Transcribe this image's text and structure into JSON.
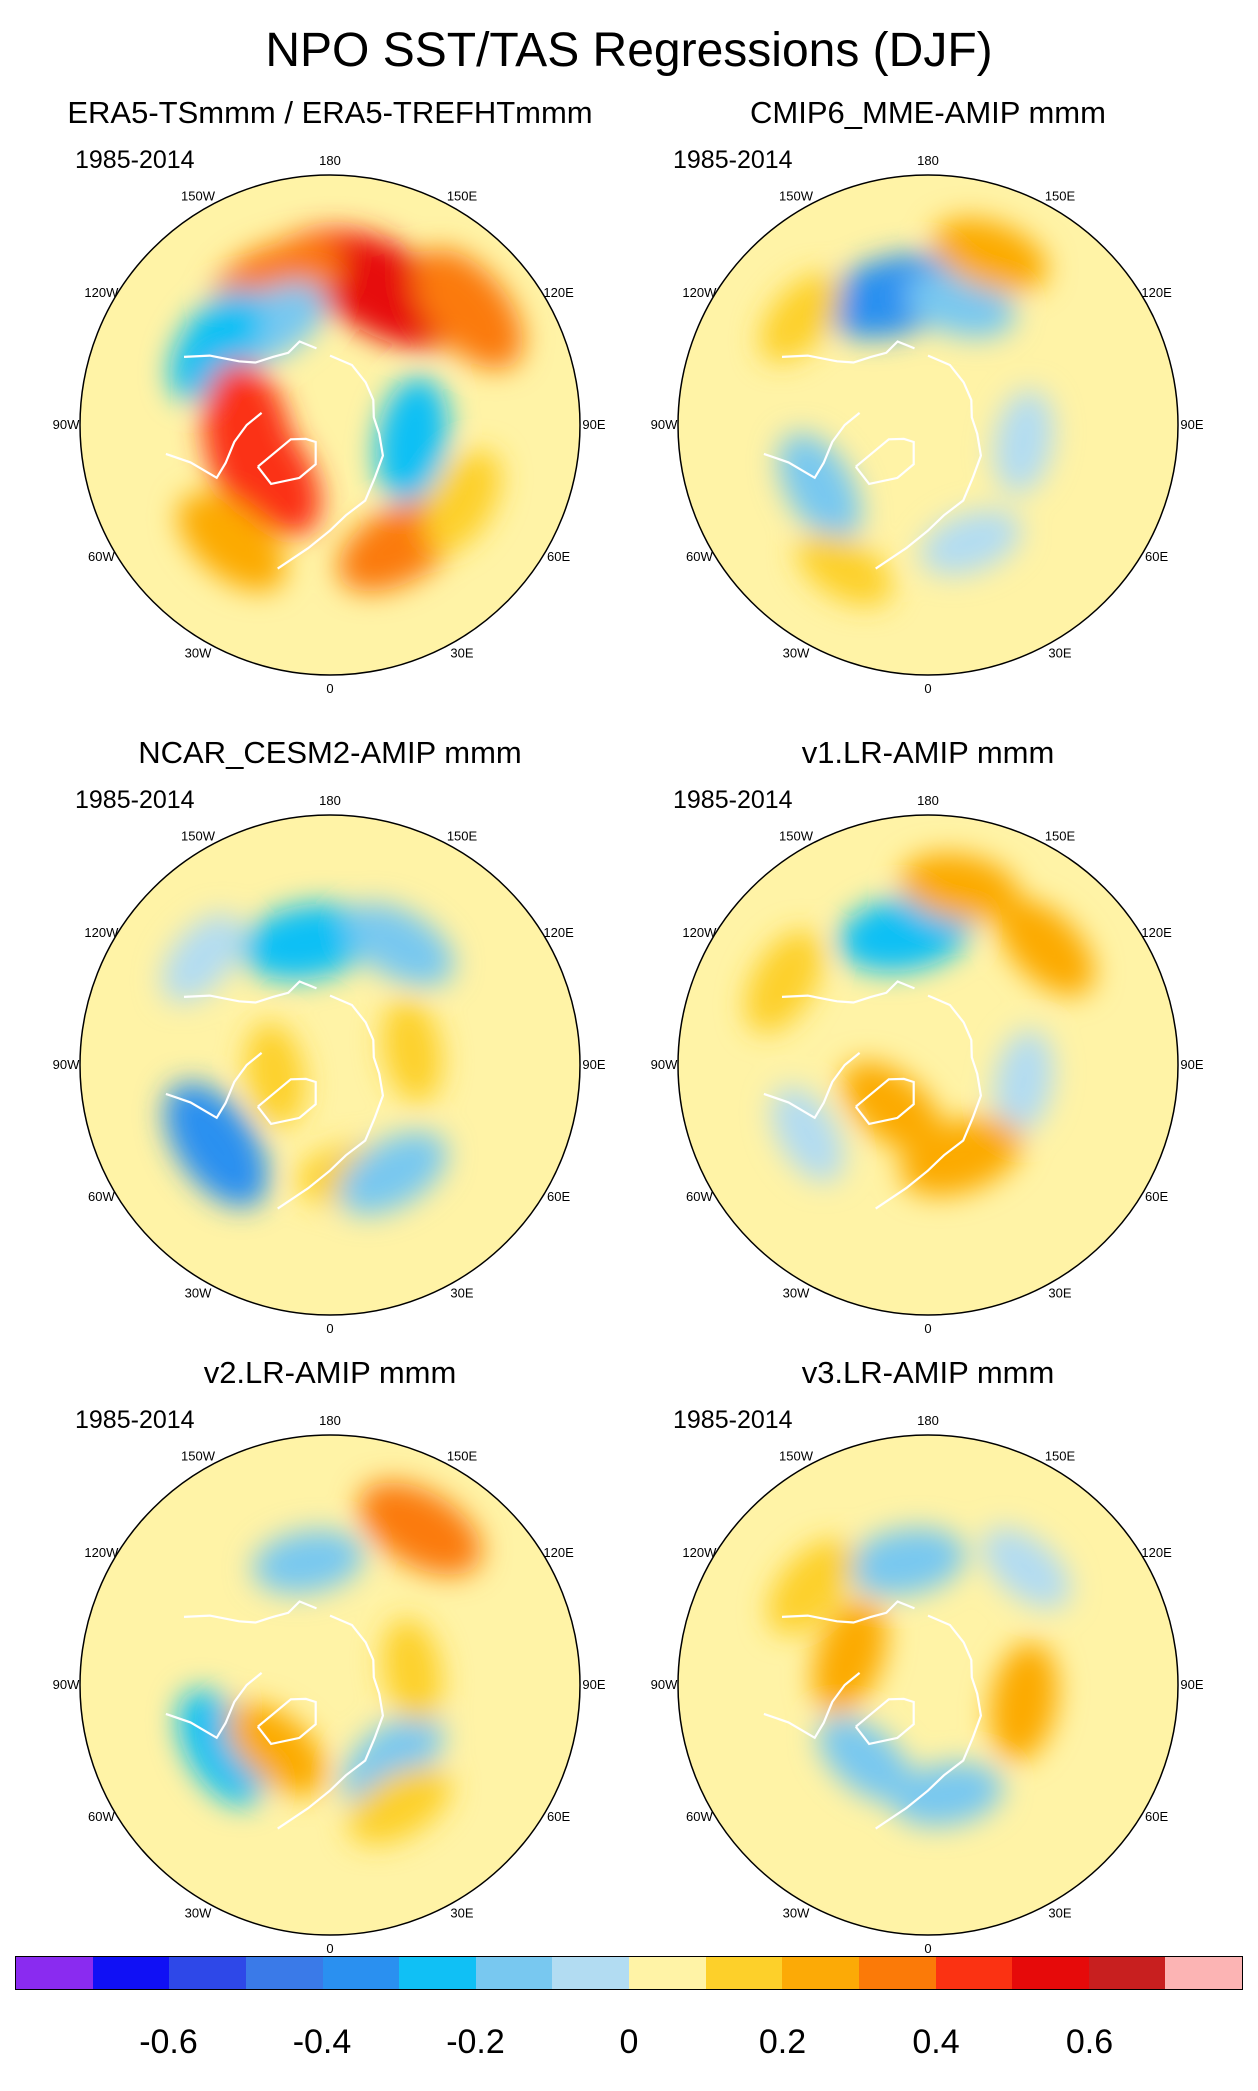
{
  "title": "NPO SST/TAS Regressions (DJF)",
  "chart_data": {
    "type": "heatmap",
    "projection": "north-polar-stereographic",
    "longitude_labels": [
      "180",
      "150E",
      "120E",
      "90E",
      "60E",
      "30E",
      "0",
      "30W",
      "60W",
      "90W",
      "120W",
      "150W"
    ],
    "colorbar": {
      "levels": [
        -0.7,
        -0.6,
        -0.5,
        -0.4,
        -0.3,
        -0.2,
        -0.1,
        0,
        0.1,
        0.2,
        0.3,
        0.4,
        0.5,
        0.6,
        0.7
      ],
      "colors": [
        "#8a2bf0",
        "#1010f5",
        "#2e48e8",
        "#3a7ae8",
        "#2a90f0",
        "#10c0f5",
        "#78c8f0",
        "#b2dcf2",
        "#fff3a6",
        "#fdd02a",
        "#fcaa06",
        "#fb7a08",
        "#fb3212",
        "#e60a0a",
        "#c81f1f",
        "#fcb4b4"
      ],
      "tick_labels": [
        "-0.6",
        "-0.4",
        "-0.2",
        "0",
        "0.2",
        "0.4",
        "0.6"
      ]
    },
    "panels": [
      {
        "title": "ERA5-TSmmm / ERA5-TREFHTmmm",
        "period": "1985-2014",
        "blobs": [
          {
            "lon": 175,
            "lat": 35,
            "value": 0.45
          },
          {
            "lon": 155,
            "lat": 38,
            "value": 0.5
          },
          {
            "lon": -160,
            "lat": 35,
            "value": 0.3
          },
          {
            "lon": 130,
            "lat": 25,
            "value": 0.35
          },
          {
            "lon": -150,
            "lat": 48,
            "value": -0.2
          },
          {
            "lon": -125,
            "lat": 40,
            "value": -0.25
          },
          {
            "lon": -80,
            "lat": 60,
            "value": 0.45
          },
          {
            "lon": -55,
            "lat": 62,
            "value": 0.4
          },
          {
            "lon": -40,
            "lat": 35,
            "value": 0.25
          },
          {
            "lon": 30,
            "lat": 40,
            "value": 0.3
          },
          {
            "lon": 80,
            "lat": 60,
            "value": -0.25
          },
          {
            "lon": 60,
            "lat": 35,
            "value": 0.15
          }
        ]
      },
      {
        "title": "CMIP6_MME-AMIP  mmm",
        "period": "1985-2014",
        "blobs": [
          {
            "lon": -165,
            "lat": 42,
            "value": -0.35
          },
          {
            "lon": 165,
            "lat": 45,
            "value": -0.15
          },
          {
            "lon": 160,
            "lat": 25,
            "value": 0.2
          },
          {
            "lon": -130,
            "lat": 30,
            "value": 0.1
          },
          {
            "lon": -60,
            "lat": 45,
            "value": -0.2
          },
          {
            "lon": 20,
            "lat": 45,
            "value": -0.1
          },
          {
            "lon": 80,
            "lat": 55,
            "value": -0.1
          },
          {
            "lon": -30,
            "lat": 30,
            "value": 0.1
          }
        ]
      },
      {
        "title": "NCAR_CESM2-AMIP  mmm",
        "period": "1985-2014",
        "blobs": [
          {
            "lon": -170,
            "lat": 45,
            "value": -0.3
          },
          {
            "lon": 150,
            "lat": 40,
            "value": -0.2
          },
          {
            "lon": -55,
            "lat": 40,
            "value": -0.35
          },
          {
            "lon": -80,
            "lat": 70,
            "value": 0.1
          },
          {
            "lon": 10,
            "lat": 50,
            "value": 0.1
          },
          {
            "lon": 100,
            "lat": 60,
            "value": 0.1
          },
          {
            "lon": 30,
            "lat": 45,
            "value": -0.2
          },
          {
            "lon": -130,
            "lat": 30,
            "value": -0.1
          }
        ]
      },
      {
        "title": "v1.LR-AMIP  mmm",
        "period": "1985-2014",
        "blobs": [
          {
            "lon": -170,
            "lat": 42,
            "value": -0.3
          },
          {
            "lon": 170,
            "lat": 25,
            "value": 0.2
          },
          {
            "lon": -120,
            "lat": 30,
            "value": 0.15
          },
          {
            "lon": 135,
            "lat": 30,
            "value": 0.2
          },
          {
            "lon": 80,
            "lat": 55,
            "value": -0.1
          },
          {
            "lon": -40,
            "lat": 70,
            "value": 0.2
          },
          {
            "lon": 20,
            "lat": 55,
            "value": 0.25
          },
          {
            "lon": -60,
            "lat": 40,
            "value": -0.1
          }
        ]
      },
      {
        "title": "v2.LR-AMIP  mmm",
        "period": "1985-2014",
        "blobs": [
          {
            "lon": -170,
            "lat": 45,
            "value": -0.15
          },
          {
            "lon": 150,
            "lat": 25,
            "value": 0.3
          },
          {
            "lon": -60,
            "lat": 45,
            "value": -0.25
          },
          {
            "lon": -40,
            "lat": 60,
            "value": 0.2
          },
          {
            "lon": 40,
            "lat": 55,
            "value": -0.2
          },
          {
            "lon": 30,
            "lat": 40,
            "value": 0.15
          },
          {
            "lon": 100,
            "lat": 60,
            "value": 0.1
          }
        ]
      },
      {
        "title": "v3.LR-AMIP  mmm",
        "period": "1985-2014",
        "blobs": [
          {
            "lon": -170,
            "lat": 45,
            "value": -0.2
          },
          {
            "lon": -110,
            "lat": 60,
            "value": 0.2
          },
          {
            "lon": 80,
            "lat": 55,
            "value": 0.2
          },
          {
            "lon": -40,
            "lat": 55,
            "value": -0.15
          },
          {
            "lon": 10,
            "lat": 50,
            "value": -0.15
          },
          {
            "lon": 140,
            "lat": 35,
            "value": -0.1
          },
          {
            "lon": -130,
            "lat": 35,
            "value": 0.15
          }
        ]
      }
    ]
  }
}
